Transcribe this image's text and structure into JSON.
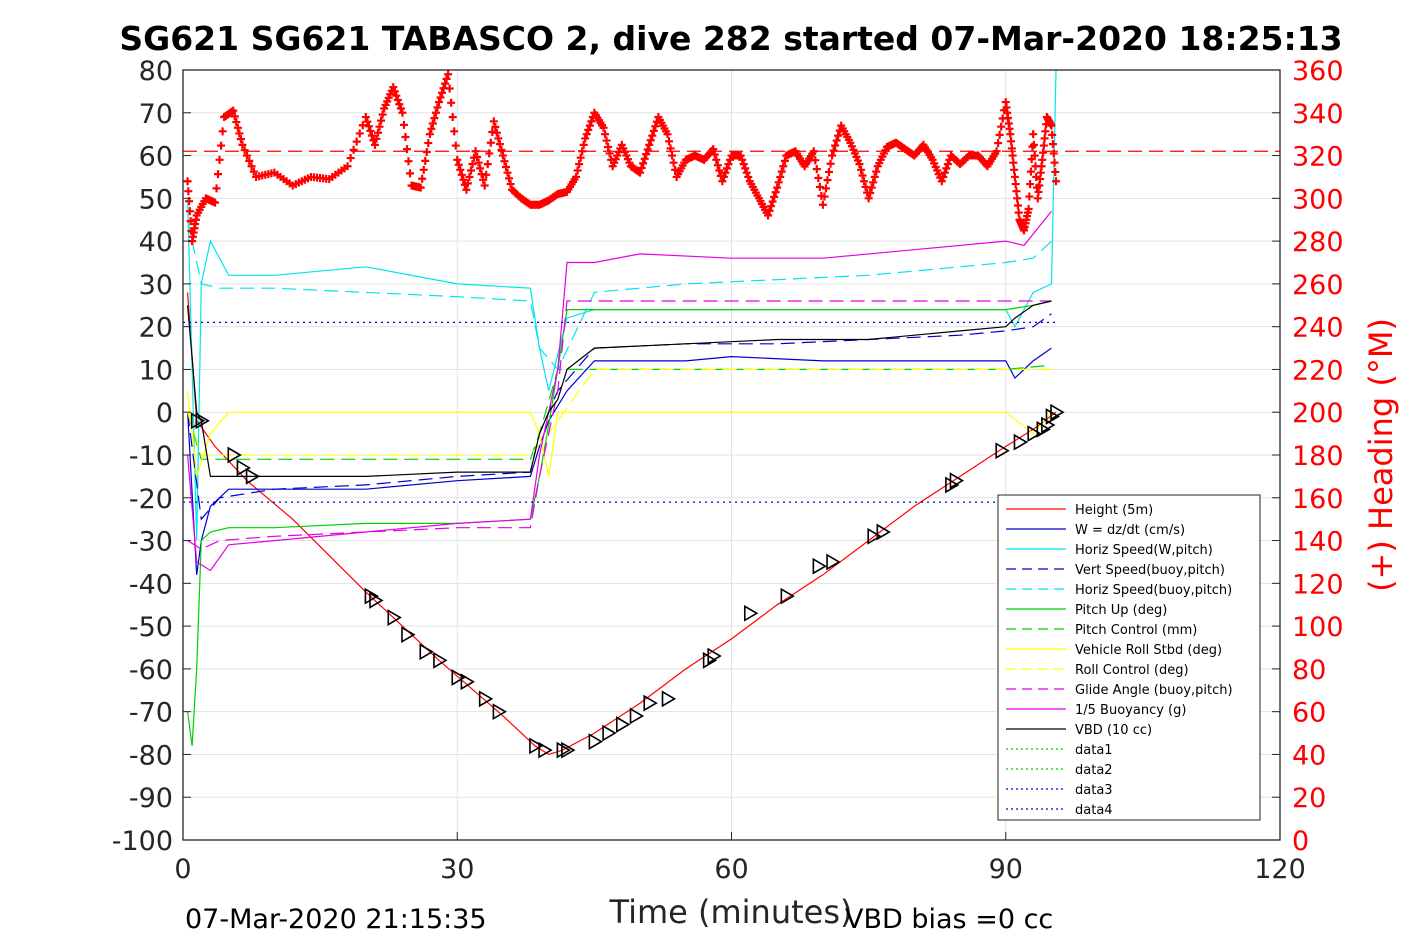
{
  "chart_data": {
    "type": "line",
    "title": "SG621 SG621 TABASCO 2, dive 282 started 07-Mar-2020 18:25:13",
    "xlabel": "Time (minutes)",
    "ylabel": "",
    "ylabel_right": "(+) Heading (°M)",
    "xlim": [
      0,
      120
    ],
    "ylim": [
      -100,
      80
    ],
    "ylim_right": [
      0,
      360
    ],
    "x_ticks": [
      "0",
      "30",
      "60",
      "90",
      "120"
    ],
    "y_ticks": [
      "80",
      "70",
      "60",
      "50",
      "40",
      "30",
      "20",
      "10",
      "0",
      "-10",
      "-20",
      "-30",
      "-40",
      "-50",
      "-60",
      "-70",
      "-80",
      "-90",
      "-100"
    ],
    "y_ticks_right": [
      "360",
      "340",
      "320",
      "300",
      "280",
      "260",
      "240",
      "220",
      "200",
      "180",
      "160",
      "140",
      "120",
      "100",
      "80",
      "60",
      "40",
      "20",
      "0"
    ],
    "grid": true,
    "legend_position": "bottom-right",
    "footer_left": "07-Mar-2020 21:15:35",
    "footer_right": "VBD bias =0 cc",
    "series": [
      {
        "name": "Height (5m)",
        "color": "#ff0000",
        "style": "solid",
        "x": [
          0.5,
          1.5,
          3.5,
          7,
          12,
          20,
          28,
          35,
          38.5,
          40,
          41.5,
          45,
          50,
          55,
          60,
          65,
          70,
          75,
          80,
          85,
          90,
          93,
          95.5
        ],
        "y": [
          28,
          -2,
          -8,
          -16,
          -25,
          -42,
          -58,
          -71,
          -78,
          -80,
          -79,
          -75,
          -68,
          -60,
          -53,
          -45,
          -38,
          -30,
          -22,
          -15,
          -8,
          -4,
          0
        ]
      },
      {
        "name": "W = dz/dt (cm/s)",
        "color": "#0000cd",
        "style": "solid",
        "x": [
          0.5,
          1.5,
          2,
          3,
          5,
          10,
          20,
          30,
          38,
          39,
          40,
          42,
          45,
          55,
          60,
          70,
          80,
          90,
          91,
          93,
          95
        ],
        "y": [
          0,
          -38,
          -30,
          -22,
          -18,
          -18,
          -18,
          -16,
          -15,
          -8,
          -2,
          5,
          12,
          12,
          13,
          12,
          12,
          12,
          8,
          12,
          15
        ]
      },
      {
        "name": "Horiz Speed(W,pitch)",
        "color": "#00e5ee",
        "style": "solid",
        "x": [
          0.5,
          1.5,
          2,
          3,
          5,
          10,
          20,
          30,
          38,
          39,
          40,
          42,
          45,
          55,
          60,
          70,
          80,
          90,
          91,
          93,
          95,
          95.5
        ],
        "y": [
          50,
          -30,
          30,
          40,
          32,
          32,
          34,
          30,
          29,
          15,
          5,
          22,
          24,
          24,
          24,
          24,
          24,
          24,
          20,
          28,
          30,
          80
        ]
      },
      {
        "name": "Vert Speed(buoy,pitch)",
        "color": "#0000cd",
        "style": "dashed",
        "x": [
          0.5,
          2,
          4,
          10,
          20,
          30,
          38,
          39,
          41,
          45,
          55,
          65,
          75,
          85,
          90,
          93,
          95
        ],
        "y": [
          0,
          -25,
          -20,
          -18,
          -17,
          -15,
          -14,
          -5,
          5,
          15,
          16,
          16,
          17,
          18,
          19,
          20,
          23
        ]
      },
      {
        "name": "Horiz Speed(buoy,pitch)",
        "color": "#00e5ee",
        "style": "dashed",
        "x": [
          0.5,
          2,
          4,
          10,
          20,
          30,
          38,
          39,
          41,
          45,
          55,
          65,
          75,
          85,
          90,
          93,
          95
        ],
        "y": [
          45,
          30,
          29,
          29,
          28,
          27,
          26,
          15,
          10,
          28,
          30,
          31,
          32,
          34,
          35,
          36,
          40
        ]
      },
      {
        "name": "Pitch Up (deg)",
        "color": "#00d000",
        "style": "solid",
        "x": [
          0.5,
          1,
          1.5,
          2,
          3,
          5,
          10,
          20,
          30,
          38,
          39,
          40,
          41,
          42,
          45,
          55,
          60,
          70,
          80,
          90,
          93,
          95
        ],
        "y": [
          -70,
          -78,
          -60,
          -30,
          -28,
          -27,
          -27,
          -26,
          -26,
          -25,
          -15,
          -3,
          10,
          24,
          24,
          24,
          24,
          24,
          24,
          24,
          25,
          26
        ]
      },
      {
        "name": "Pitch Control (mm)",
        "color": "#00d000",
        "style": "dashed",
        "x": [
          0.5,
          2,
          10,
          20,
          30,
          38,
          39,
          41,
          45,
          60,
          75,
          90,
          95
        ],
        "y": [
          0,
          -11,
          -11,
          -11,
          -11,
          -11,
          -5,
          10,
          10,
          10,
          10,
          10,
          11
        ]
      },
      {
        "name": "Vehicle Roll Stbd (deg)",
        "color": "#ffff00",
        "style": "solid",
        "x": [
          0.5,
          1.5,
          3,
          5,
          6,
          10,
          20,
          25,
          30,
          35,
          38,
          39,
          40,
          41,
          45,
          50,
          55,
          60,
          65,
          70,
          75,
          80,
          85,
          90,
          93,
          95
        ],
        "y": [
          5,
          -15,
          -5,
          0,
          0,
          0,
          0,
          0,
          0,
          0,
          0,
          -5,
          -15,
          0,
          0,
          0,
          0,
          0,
          0,
          0,
          0,
          0,
          0,
          0,
          -5,
          0
        ]
      },
      {
        "name": "Roll Control (deg)",
        "color": "#ffff00",
        "style": "dashed",
        "x": [
          0.5,
          2,
          5,
          20,
          38,
          40,
          45,
          60,
          75,
          90,
          95
        ],
        "y": [
          0,
          -10,
          -10,
          -10,
          -10,
          -5,
          10,
          10,
          10,
          10,
          10
        ]
      },
      {
        "name": "Glide Angle (buoy,pitch)",
        "color": "#e600e6",
        "style": "dashed",
        "x": [
          0.5,
          2,
          4,
          10,
          20,
          30,
          38,
          39,
          41,
          42,
          45,
          55,
          65,
          75,
          85,
          90,
          95
        ],
        "y": [
          -30,
          -32,
          -30,
          -29,
          -28,
          -27,
          -27,
          -15,
          5,
          26,
          26,
          26,
          26,
          26,
          26,
          26,
          26
        ]
      },
      {
        "name": "1/5 Buoyancy (g)",
        "color": "#e600e6",
        "style": "solid",
        "x": [
          0.5,
          1.5,
          3,
          5,
          10,
          20,
          30,
          38,
          39,
          41,
          42,
          45,
          50,
          60,
          70,
          80,
          90,
          92,
          95
        ],
        "y": [
          -10,
          -35,
          -37,
          -31,
          -30,
          -28,
          -26,
          -25,
          -10,
          10,
          35,
          35,
          37,
          36,
          36,
          38,
          40,
          39,
          47
        ]
      },
      {
        "name": "VBD (10 cc)",
        "color": "#000000",
        "style": "solid",
        "x": [
          0.5,
          1.5,
          2,
          3,
          10,
          20,
          30,
          38,
          39,
          40,
          41,
          42,
          45,
          55,
          65,
          75,
          80,
          85,
          90,
          91,
          93,
          95
        ],
        "y": [
          25,
          0,
          -2,
          -15,
          -15,
          -15,
          -14,
          -14,
          -5,
          0,
          3,
          10,
          15,
          16,
          17,
          17,
          18,
          19,
          20,
          22,
          25,
          26
        ]
      },
      {
        "name": "data1",
        "color": "#00d000",
        "style": "dotted",
        "x": [],
        "y": []
      },
      {
        "name": "data2",
        "color": "#00d000",
        "style": "dotted",
        "x": [],
        "y": []
      },
      {
        "name": "data3",
        "color": "#0000cd",
        "style": "dotted",
        "x": [
          0,
          95.5
        ],
        "y": [
          21,
          21
        ]
      },
      {
        "name": "data4",
        "color": "#0000cd",
        "style": "dotted",
        "x": [
          0,
          95.5
        ],
        "y": [
          -21,
          -21
        ]
      }
    ],
    "heading_series": {
      "name": "(+) Heading",
      "color": "#ff0000",
      "marker": "+",
      "axis": "right",
      "x": [
        0.5,
        1,
        1.5,
        2.5,
        3.5,
        4.5,
        5.5,
        6.5,
        8,
        10,
        12,
        14,
        16,
        18,
        20,
        21,
        22,
        23,
        24,
        25,
        26,
        27,
        28,
        29,
        30,
        31,
        32,
        33,
        34,
        35,
        36,
        37,
        38,
        39,
        40,
        41,
        42,
        43,
        44,
        45,
        46,
        47,
        48,
        49,
        50,
        51,
        52,
        53,
        54,
        55,
        56,
        57,
        58,
        59,
        60,
        61,
        62,
        63,
        64,
        65,
        66,
        67,
        68,
        69,
        70,
        71,
        72,
        73,
        74,
        75,
        76,
        77,
        78,
        79,
        80,
        81,
        82,
        83,
        84,
        85,
        86,
        87,
        88,
        89,
        90,
        90.5,
        91,
        91.5,
        92,
        92.5,
        93,
        93.5,
        94,
        94.5,
        95,
        95.5
      ],
      "y": [
        308,
        280,
        292,
        300,
        298,
        338,
        341,
        325,
        310,
        312,
        306,
        310,
        309,
        315,
        338,
        325,
        342,
        352,
        340,
        306,
        305,
        330,
        345,
        358,
        318,
        304,
        322,
        306,
        336,
        320,
        304,
        300,
        297,
        297,
        299,
        302,
        303,
        310,
        328,
        340,
        333,
        315,
        325,
        315,
        312,
        325,
        338,
        330,
        310,
        318,
        320,
        318,
        323,
        308,
        320,
        320,
        308,
        300,
        292,
        305,
        320,
        322,
        315,
        322,
        297,
        320,
        334,
        326,
        316,
        300,
        315,
        324,
        326,
        323,
        320,
        325,
        318,
        308,
        320,
        316,
        320,
        320,
        315,
        322,
        345,
        330,
        310,
        290,
        285,
        295,
        330,
        300,
        318,
        338,
        334,
        308
      ],
      "reference_line": 322
    },
    "markers": {
      "symbol": "triangle",
      "color": "#000000",
      "x": [
        1.5,
        2,
        5.5,
        6.5,
        7.5,
        20.5,
        21,
        23,
        24.5,
        26.5,
        28,
        30,
        31,
        33,
        34.5,
        38.5,
        39.5,
        41.5,
        42,
        45,
        46.5,
        48,
        49.5,
        51,
        53,
        57.5,
        58,
        62,
        66,
        69.5,
        71,
        75.5,
        76.5,
        84,
        84.5,
        89.5,
        91.5,
        93,
        94,
        94.5,
        95,
        95.5
      ],
      "y": [
        -2,
        -2,
        -10,
        -13,
        -15,
        -43,
        -44,
        -48,
        -52,
        -56,
        -58,
        -62,
        -63,
        -67,
        -70,
        -78,
        -79,
        -79,
        -79,
        -77,
        -75,
        -73,
        -71,
        -68,
        -67,
        -58,
        -57,
        -47,
        -43,
        -36,
        -35,
        -29,
        -28,
        -17,
        -16,
        -9,
        -7,
        -5,
        -4,
        -3,
        -1,
        0
      ]
    }
  }
}
